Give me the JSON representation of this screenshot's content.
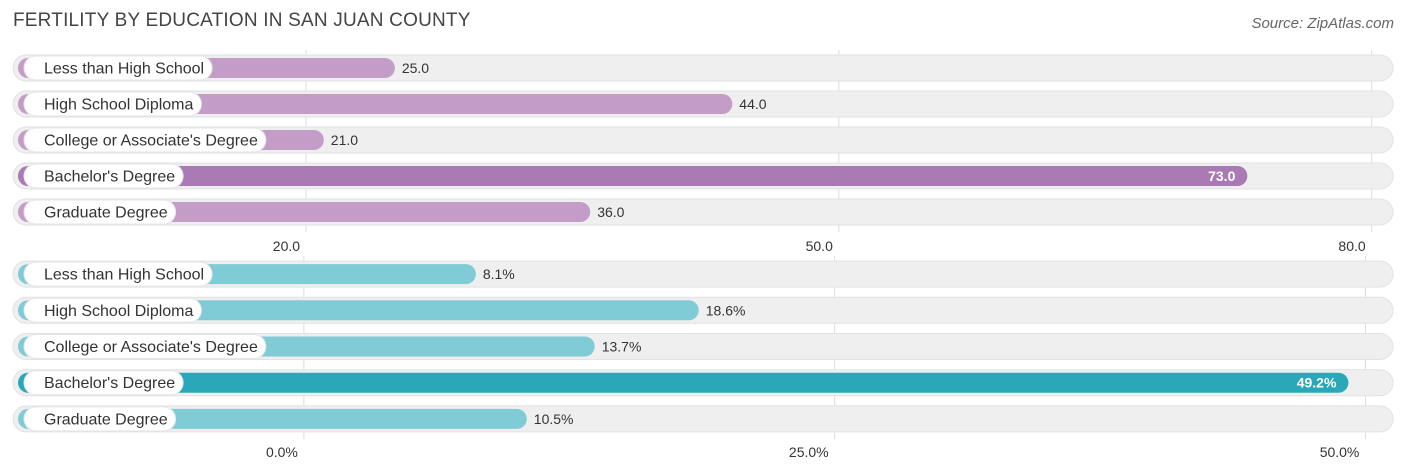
{
  "title": "FERTILITY BY EDUCATION IN SAN JUAN COUNTY",
  "source": "Source: ZipAtlas.com",
  "colors": {
    "top_bar": "#c39dc8",
    "top_bar_highlight": "#a97ab4",
    "bottom_bar": "#7fcbd6",
    "bottom_bar_highlight": "#2aa7b9",
    "track": "#efefef",
    "grid": "#dddddd"
  },
  "chart_data": [
    {
      "type": "bar",
      "orientation": "horizontal",
      "categories": [
        "Less than High School",
        "High School Diploma",
        "College or Associate's Degree",
        "Bachelor's Degree",
        "Graduate Degree"
      ],
      "values": [
        25.0,
        44.0,
        21.0,
        73.0,
        36.0
      ],
      "value_labels": [
        "25.0",
        "44.0",
        "21.0",
        "73.0",
        "36.0"
      ],
      "highlight_index": 3,
      "xlim": [
        3.5,
        81.2
      ],
      "ticks": [
        20.0,
        50.0,
        80.0
      ],
      "tick_labels": [
        "20.0",
        "50.0",
        "80.0"
      ],
      "grid": true
    },
    {
      "type": "bar",
      "orientation": "horizontal",
      "categories": [
        "Less than High School",
        "High School Diploma",
        "College or Associate's Degree",
        "Bachelor's Degree",
        "Graduate Degree"
      ],
      "values": [
        8.1,
        18.6,
        13.7,
        49.2,
        10.5
      ],
      "value_labels": [
        "8.1%",
        "18.6%",
        "13.7%",
        "49.2%",
        "10.5%"
      ],
      "highlight_index": 3,
      "xlim": [
        -13.7,
        51.3
      ],
      "ticks": [
        0.0,
        25.0,
        50.0
      ],
      "tick_labels": [
        "0.0%",
        "25.0%",
        "50.0%"
      ],
      "grid": true
    }
  ]
}
